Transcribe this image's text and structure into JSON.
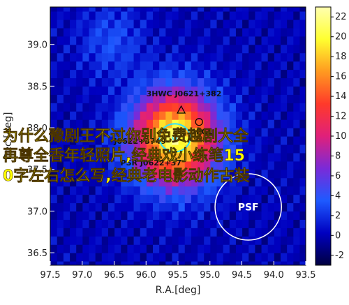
{
  "chart_data": {
    "type": "heatmap",
    "title": "",
    "xlabel": "R.A.[deg]",
    "ylabel": "Dec.[deg]",
    "xlim": [
      97.5,
      93.5
    ],
    "ylim": [
      36.35,
      39.45
    ],
    "x_ticks": [
      "97.5",
      "97.0",
      "96.5",
      "96.0",
      "95.5",
      "95.0",
      "94.5",
      "94.0",
      "93.5"
    ],
    "y_ticks": [
      "36.5",
      "37.0",
      "37.5",
      "38.0",
      "38.5",
      "39.0"
    ],
    "colorbar": {
      "ticks": [
        "-2",
        "0",
        "2",
        "4",
        "6",
        "8",
        "10",
        "12",
        "14",
        "16",
        "18",
        "20",
        "22"
      ],
      "range": [
        -3,
        23
      ],
      "colormap": [
        "#000040",
        "#0000c0",
        "#1e5aff",
        "#7a2ad8",
        "#e0207a",
        "#ff3a2a",
        "#ff9a20",
        "#ffff30",
        "#ffffb0"
      ]
    },
    "grid": false,
    "sources": [
      {
        "name": "3HWC J0621+382",
        "ra": 95.45,
        "dec": 38.21,
        "marker": "triangle"
      },
      {
        "name": "4FGL",
        "ra": 95.17,
        "dec": 38.07,
        "marker": "circle"
      },
      {
        "name": "J0622+3749",
        "ra": 95.9,
        "dec": 37.84,
        "marker": "none"
      },
      {
        "name": "PSR J0622+37",
        "ra": 95.8,
        "dec": 37.58,
        "marker": "none"
      }
    ],
    "psf": {
      "label": "PSF",
      "ra": 94.4,
      "dec": 37.05,
      "radius_deg": 0.52
    }
  },
  "overlay_text": [
    "为什么豫剧王不过你别免费越剧大全",
    "再尊全香年轻照片,经典戏小练笔15",
    "0字左右怎么写,经典老电影动作古装"
  ]
}
